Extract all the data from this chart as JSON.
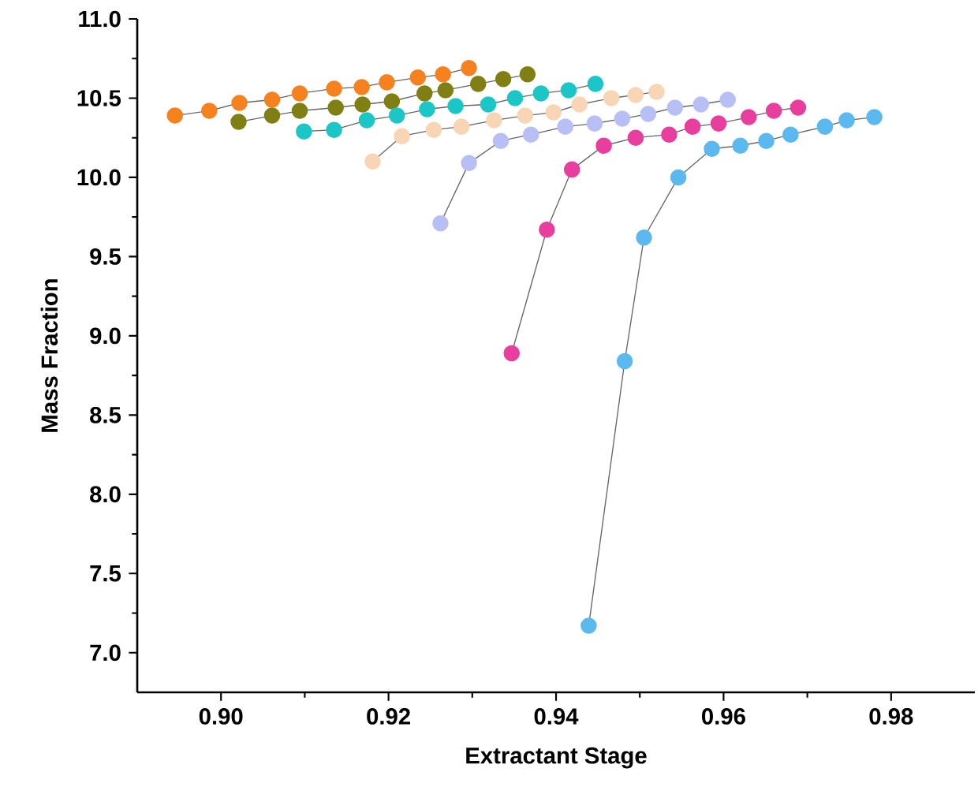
{
  "chart_data": {
    "type": "line",
    "xlabel": "Extractant Stage",
    "ylabel": "Mass Fraction",
    "xlim": [
      0.89,
      0.99
    ],
    "xticks": [
      {
        "value": 0.9,
        "label": "0.90"
      },
      {
        "value": 0.92,
        "label": "0.92"
      },
      {
        "value": 0.94,
        "label": "0.94"
      },
      {
        "value": 0.96,
        "label": "0.96"
      },
      {
        "value": 0.98,
        "label": "0.98"
      }
    ],
    "ylim": [
      6.75,
      11.0
    ],
    "yticks": [
      {
        "value": 7.0,
        "label": "7.0"
      },
      {
        "value": 7.5,
        "label": "7.5"
      },
      {
        "value": 8.0,
        "label": "8.0"
      },
      {
        "value": 8.5,
        "label": "8.5"
      },
      {
        "value": 9.0,
        "label": "9.0"
      },
      {
        "value": 9.5,
        "label": "9.5"
      },
      {
        "value": 10.0,
        "label": "10.0"
      },
      {
        "value": 10.5,
        "label": "10.5"
      },
      {
        "value": 11.0,
        "label": "11.0"
      }
    ],
    "marker": "circle",
    "line_style": "solid",
    "grid": false,
    "series": [
      {
        "color": "#f5821f",
        "x": [
          0.8945,
          0.8986,
          0.9022,
          0.9061,
          0.9094,
          0.9135,
          0.9168,
          0.9198,
          0.9235,
          0.9265,
          0.9296
        ],
        "values": [
          10.39,
          10.42,
          10.47,
          10.49,
          10.53,
          10.56,
          10.57,
          10.6,
          10.63,
          10.65,
          10.69
        ]
      },
      {
        "color": "#7f7f14",
        "x": [
          0.9021,
          0.9061,
          0.9094,
          0.9137,
          0.9169,
          0.9204,
          0.9243,
          0.9268,
          0.9307,
          0.9337,
          0.9366
        ],
        "values": [
          10.35,
          10.39,
          10.42,
          10.44,
          10.46,
          10.48,
          10.53,
          10.55,
          10.59,
          10.62,
          10.65
        ]
      },
      {
        "color": "#1cc6c6",
        "x": [
          0.9099,
          0.9135,
          0.9174,
          0.921,
          0.9246,
          0.928,
          0.9319,
          0.9351,
          0.9382,
          0.9415,
          0.9447
        ],
        "values": [
          10.29,
          10.3,
          10.36,
          10.39,
          10.43,
          10.45,
          10.46,
          10.5,
          10.53,
          10.55,
          10.59
        ]
      },
      {
        "color": "#f7d5b5",
        "x": [
          0.9181,
          0.9216,
          0.9254,
          0.9287,
          0.9326,
          0.9363,
          0.9397,
          0.9428,
          0.9466,
          0.9495,
          0.952
        ],
        "values": [
          10.1,
          10.26,
          10.3,
          10.32,
          10.36,
          10.39,
          10.41,
          10.46,
          10.5,
          10.52,
          10.54
        ]
      },
      {
        "color": "#b8bff5",
        "x": [
          0.9262,
          0.9296,
          0.9334,
          0.937,
          0.9411,
          0.9446,
          0.9479,
          0.951,
          0.9542,
          0.9573,
          0.9605
        ],
        "values": [
          9.71,
          10.09,
          10.23,
          10.27,
          10.32,
          10.34,
          10.37,
          10.4,
          10.44,
          10.46,
          10.49
        ]
      },
      {
        "color": "#e83e9e",
        "x": [
          0.9347,
          0.9389,
          0.9419,
          0.9457,
          0.9495,
          0.9535,
          0.9563,
          0.9594,
          0.963,
          0.966,
          0.9689
        ],
        "values": [
          8.89,
          9.67,
          10.05,
          10.2,
          10.25,
          10.27,
          10.32,
          10.34,
          10.38,
          10.42,
          10.44
        ]
      },
      {
        "color": "#5bb9ef",
        "x": [
          0.9439,
          0.9482,
          0.9505,
          0.9546,
          0.9586,
          0.962,
          0.9651,
          0.968,
          0.9721,
          0.9747,
          0.978
        ],
        "values": [
          7.17,
          8.84,
          9.62,
          10.0,
          10.18,
          10.2,
          10.23,
          10.27,
          10.32,
          10.36,
          10.38
        ]
      }
    ]
  }
}
